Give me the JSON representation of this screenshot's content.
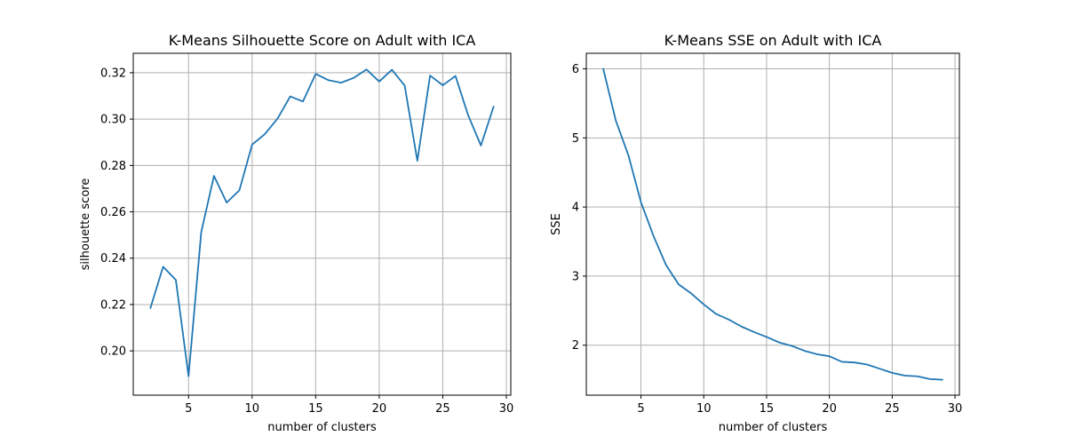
{
  "chart_data": [
    {
      "type": "line",
      "title": "K-Means Silhouette Score on Adult with ICA",
      "xlabel": "number of clusters",
      "ylabel": "silhouette score",
      "xlim": [
        0.65,
        30.35
      ],
      "ylim": [
        0.1809,
        0.3284
      ],
      "xticks": [
        5,
        10,
        15,
        20,
        25,
        30
      ],
      "xtick_labels": [
        "5",
        "10",
        "15",
        "20",
        "25",
        "30"
      ],
      "yticks": [
        0.2,
        0.22,
        0.24,
        0.26,
        0.28,
        0.3,
        0.32
      ],
      "ytick_labels": [
        "0.20",
        "0.22",
        "0.24",
        "0.26",
        "0.28",
        "0.30",
        "0.32"
      ],
      "grid": true,
      "color": "#1f77b4",
      "x": [
        2,
        3,
        4,
        5,
        6,
        7,
        8,
        9,
        10,
        11,
        12,
        13,
        14,
        15,
        16,
        17,
        18,
        19,
        20,
        21,
        22,
        23,
        24,
        25,
        26,
        27,
        28,
        29
      ],
      "y": [
        0.2185,
        0.2363,
        0.2306,
        0.1891,
        0.2513,
        0.2755,
        0.264,
        0.2693,
        0.289,
        0.2935,
        0.3002,
        0.3098,
        0.3076,
        0.3195,
        0.3168,
        0.3157,
        0.3178,
        0.3214,
        0.3162,
        0.3213,
        0.3145,
        0.282,
        0.3188,
        0.3146,
        0.3186,
        0.3016,
        0.2886,
        0.3054
      ]
    },
    {
      "type": "line",
      "title": "K-Means SSE on Adult with ICA",
      "xlabel": "number of clusters",
      "ylabel": "SSE",
      "xlim": [
        0.65,
        30.35
      ],
      "ylim": [
        1.277,
        6.225
      ],
      "xticks": [
        5,
        10,
        15,
        20,
        25,
        30
      ],
      "xtick_labels": [
        "5",
        "10",
        "15",
        "20",
        "25",
        "30"
      ],
      "yticks": [
        2,
        3,
        4,
        5,
        6
      ],
      "ytick_labels": [
        "2",
        "3",
        "4",
        "5",
        "6"
      ],
      "grid": true,
      "color": "#1f77b4",
      "x": [
        2,
        3,
        4,
        5,
        6,
        7,
        8,
        9,
        10,
        11,
        12,
        13,
        14,
        15,
        16,
        17,
        18,
        19,
        20,
        21,
        22,
        23,
        24,
        25,
        26,
        27,
        28,
        29
      ],
      "y": [
        6.0,
        5.25,
        4.75,
        4.07,
        3.58,
        3.16,
        2.88,
        2.75,
        2.59,
        2.45,
        2.37,
        2.27,
        2.19,
        2.12,
        2.04,
        1.99,
        1.92,
        1.87,
        1.84,
        1.76,
        1.75,
        1.72,
        1.66,
        1.6,
        1.56,
        1.55,
        1.51,
        1.5
      ]
    }
  ]
}
